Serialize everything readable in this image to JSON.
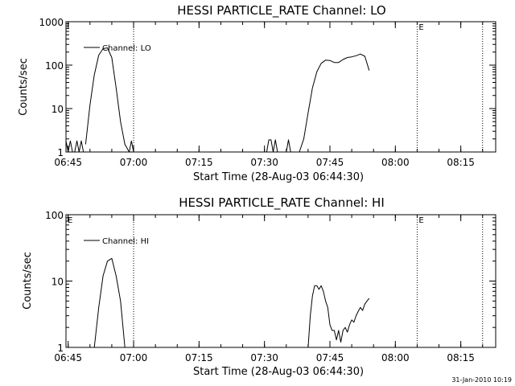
{
  "footer": {
    "timestamp": "31-Jan-2010 10:19"
  },
  "chart_data": [
    {
      "type": "line",
      "title": "HESSI PARTICLE_RATE Channel: LO",
      "xlabel": "Start Time (28-Aug-03 06:44:30)",
      "ylabel": "Counts/sec",
      "y_scale": "log",
      "xlim": [
        "06:44:30",
        "08:23:00"
      ],
      "ylim": [
        1,
        1000
      ],
      "x_ticks": [
        "06:45",
        "07:00",
        "07:15",
        "07:30",
        "07:45",
        "08:00",
        "08:15"
      ],
      "y_ticks": [
        "1",
        "10",
        "100",
        "1000"
      ],
      "legend": {
        "position": "top-left",
        "label": "Channel: LO"
      },
      "markers": [
        {
          "time": "07:00",
          "label": ""
        },
        {
          "time": "08:05",
          "label": "E"
        },
        {
          "time": "08:20",
          "label": ""
        }
      ],
      "series": [
        {
          "segments": [
            {
              "x": [
                "06:44:30",
                "06:45:00",
                "06:45:30",
                "06:46:00",
                "06:46:30",
                "06:47:00",
                "06:47:30",
                "06:48:00",
                "06:48:30",
                "06:49:00"
              ],
              "y": [
                1.8,
                1.0,
                1.8,
                1.0,
                1.0,
                1.8,
                1.0,
                1.8,
                1.0,
                1.0
              ]
            },
            {
              "x": [
                "06:49:00",
                "06:50:00",
                "06:51:00",
                "06:52:00",
                "06:53:00",
                "06:54:00",
                "06:55:00",
                "06:56:00",
                "06:57:00",
                "06:58:00",
                "06:59:00"
              ],
              "y": [
                1.5,
                12,
                60,
                170,
                240,
                250,
                150,
                30,
                5,
                1.5,
                1.0
              ]
            },
            {
              "x": [
                "06:59:00",
                "06:59:30",
                "07:00:00"
              ],
              "y": [
                1.0,
                1.8,
                1.0
              ]
            },
            {
              "x": [
                "07:30:30",
                "07:31:00",
                "07:31:30",
                "07:32:00",
                "07:32:30",
                "07:33:00"
              ],
              "y": [
                1.0,
                1.9,
                1.9,
                1.0,
                1.9,
                1.0
              ]
            },
            {
              "x": [
                "07:35:00",
                "07:35:30",
                "07:36:00"
              ],
              "y": [
                1.0,
                1.9,
                1.0
              ]
            },
            {
              "x": [
                "07:38:00",
                "07:39:00",
                "07:40:00",
                "07:41:00",
                "07:42:00",
                "07:43:00",
                "07:44:00",
                "07:45:00",
                "07:46:00",
                "07:47:00",
                "07:48:00",
                "07:49:00",
                "07:50:00",
                "07:51:00",
                "07:52:00",
                "07:53:00",
                "07:54:00"
              ],
              "y": [
                1.0,
                2,
                8,
                30,
                70,
                110,
                130,
                128,
                115,
                115,
                135,
                150,
                155,
                165,
                180,
                160,
                75
              ]
            }
          ]
        }
      ]
    },
    {
      "type": "line",
      "title": "HESSI PARTICLE_RATE Channel: HI",
      "xlabel": "Start Time (28-Aug-03 06:44:30)",
      "ylabel": "Counts/sec",
      "y_scale": "log",
      "xlim": [
        "06:44:30",
        "08:23:00"
      ],
      "ylim": [
        1,
        100
      ],
      "x_ticks": [
        "06:45",
        "07:00",
        "07:15",
        "07:30",
        "07:45",
        "08:00",
        "08:15"
      ],
      "y_ticks": [
        "1",
        "10",
        "100"
      ],
      "legend": {
        "position": "top-left",
        "label": "Channel: HI"
      },
      "markers": [
        {
          "time": "06:44:30",
          "label": "E"
        },
        {
          "time": "07:00",
          "label": ""
        },
        {
          "time": "08:05",
          "label": "E"
        },
        {
          "time": "08:20",
          "label": ""
        }
      ],
      "series": [
        {
          "segments": [
            {
              "x": [
                "06:51:00",
                "06:52:00",
                "06:53:00",
                "06:54:00",
                "06:55:00",
                "06:56:00",
                "06:57:00",
                "06:58:00"
              ],
              "y": [
                1.0,
                4,
                12,
                20,
                22,
                12,
                5,
                1.0
              ]
            },
            {
              "x": [
                "07:40:00",
                "07:40:30",
                "07:41:00",
                "07:41:30",
                "07:42:00",
                "07:42:30",
                "07:43:00",
                "07:43:30",
                "07:44:00",
                "07:44:30",
                "07:45:00",
                "07:45:30",
                "07:46:00",
                "07:46:30",
                "07:47:00",
                "07:47:30",
                "07:48:00",
                "07:48:30",
                "07:49:00",
                "07:49:30",
                "07:50:00",
                "07:50:30",
                "07:51:00",
                "07:51:30",
                "07:52:00",
                "07:52:30",
                "07:53:00",
                "07:53:30",
                "07:54:00"
              ],
              "y": [
                1.0,
                3,
                6,
                8.5,
                8.5,
                7.5,
                8.5,
                7,
                5,
                4,
                2.2,
                1.8,
                1.8,
                1.3,
                1.8,
                1.2,
                1.8,
                2,
                1.7,
                2.2,
                2.6,
                2.4,
                3,
                3.5,
                4,
                3.6,
                4.5,
                5,
                5.5
              ]
            }
          ]
        }
      ]
    }
  ]
}
